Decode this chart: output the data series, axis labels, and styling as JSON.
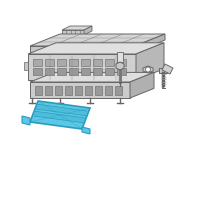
{
  "bg_color": "#ffffff",
  "highlight_color": "#5bc8e8",
  "highlight_edge": "#2a9cbd",
  "highlight_dark": "#3aaec8",
  "line_color": "#aaaaaa",
  "dark_line": "#666666",
  "mid_line": "#888888",
  "fig_width": 2.0,
  "fig_height": 2.0,
  "dpi": 100
}
